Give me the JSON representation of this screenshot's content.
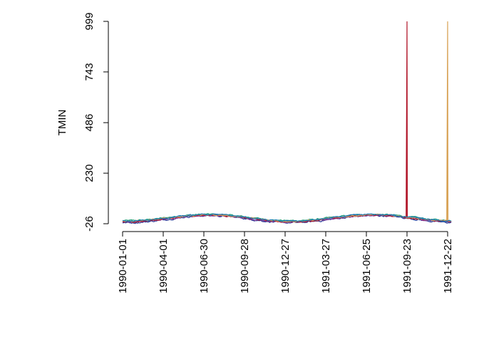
{
  "chart_data": {
    "type": "line",
    "title": "",
    "xlabel": "",
    "ylabel": "TMIN",
    "x_ticks": [
      "1990-01-01",
      "1990-04-01",
      "1990-06-30",
      "1990-09-28",
      "1990-12-27",
      "1991-03-27",
      "1991-06-25",
      "1991-09-23",
      "1991-12-22"
    ],
    "y_ticks": [
      -26,
      230,
      486,
      743,
      999
    ],
    "xlim": [
      "1990-01-01",
      "1992-01-01"
    ],
    "ylim": [
      -26,
      999
    ],
    "grid": false,
    "legend": "none",
    "series": [
      {
        "color": "#1b9e77",
        "base": 6,
        "amplitude": 16,
        "noise": 5,
        "spike": null
      },
      {
        "color": "#2c7fb8",
        "base": 2,
        "amplitude": 17,
        "noise": 6,
        "spike": null
      },
      {
        "color": "#253494",
        "base": -3,
        "amplitude": 18,
        "noise": 6,
        "spike": null
      },
      {
        "color": "#7b3294",
        "base": -1,
        "amplitude": 16,
        "noise": 5,
        "spike": null
      },
      {
        "color": "#b2182b",
        "base": 1,
        "amplitude": 17,
        "noise": 5,
        "spike": {
          "date": "1991-09-23",
          "value": 999
        }
      },
      {
        "color": "#d8a255",
        "base": 3,
        "amplitude": 16,
        "noise": 5,
        "spike": {
          "date": "1991-12-22",
          "value": 999
        }
      },
      {
        "color": "#1f78b4",
        "base": 4,
        "amplitude": 17,
        "noise": 5,
        "spike": null
      }
    ]
  }
}
